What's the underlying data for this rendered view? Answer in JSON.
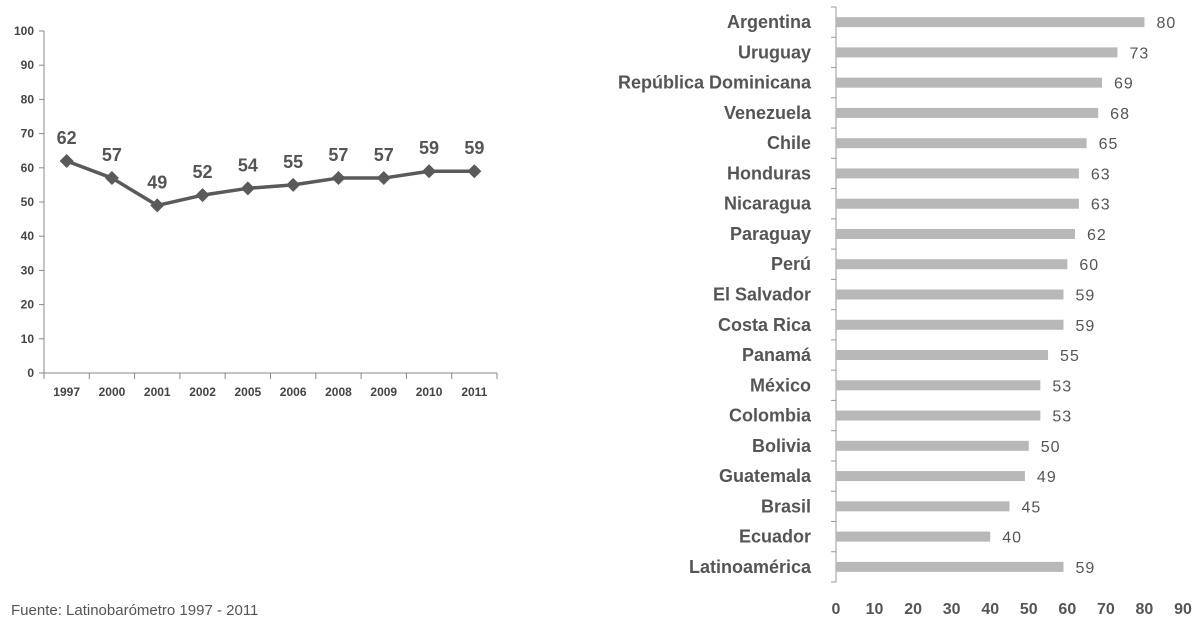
{
  "source": "Fuente: Latinobarómetro 1997 - 2011",
  "chart_data": [
    {
      "type": "line",
      "x": [
        "1997",
        "2000",
        "2001",
        "2002",
        "2005",
        "2006",
        "2008",
        "2009",
        "2010",
        "2011"
      ],
      "series": [
        {
          "values": [
            62,
            57,
            49,
            52,
            54,
            55,
            57,
            57,
            59,
            59
          ],
          "data_labels": [
            "62",
            "57",
            "49",
            "52",
            "54",
            "55",
            "57",
            "57",
            "59",
            "59"
          ],
          "color": "#5a5a5a",
          "marker": "diamond"
        }
      ],
      "y_ticks": [
        "0",
        "10",
        "20",
        "30",
        "40",
        "50",
        "60",
        "70",
        "80",
        "90",
        "100"
      ],
      "ylim": [
        0,
        100
      ],
      "grid": false,
      "title": "",
      "xlabel": "",
      "ylabel": ""
    },
    {
      "type": "bar",
      "orientation": "horizontal",
      "categories": [
        "Argentina",
        "Uruguay",
        "República Dominicana",
        "Venezuela",
        "Chile",
        "Honduras",
        "Nicaragua",
        "Paraguay",
        "Perú",
        "El Salvador",
        "Costa Rica",
        "Panamá",
        "México",
        "Colombia",
        "Bolivia",
        "Guatemala",
        "Brasil",
        "Ecuador",
        "Latinoamérica"
      ],
      "values": [
        80,
        73,
        69,
        68,
        65,
        63,
        63,
        62,
        60,
        59,
        59,
        55,
        53,
        53,
        50,
        49,
        45,
        40,
        59
      ],
      "value_labels": [
        "80",
        "73",
        "69",
        "68",
        "65",
        "63",
        "63",
        "62",
        "60",
        "59",
        "59",
        "55",
        "53",
        "53",
        "50",
        "49",
        "45",
        "40",
        "59"
      ],
      "x_ticks": [
        "0",
        "10",
        "20",
        "30",
        "40",
        "50",
        "60",
        "70",
        "80",
        "90"
      ],
      "xlim": [
        0,
        90
      ],
      "bar_color": "#b8b8b8",
      "grid": false,
      "title": "",
      "xlabel": "",
      "ylabel": ""
    }
  ]
}
